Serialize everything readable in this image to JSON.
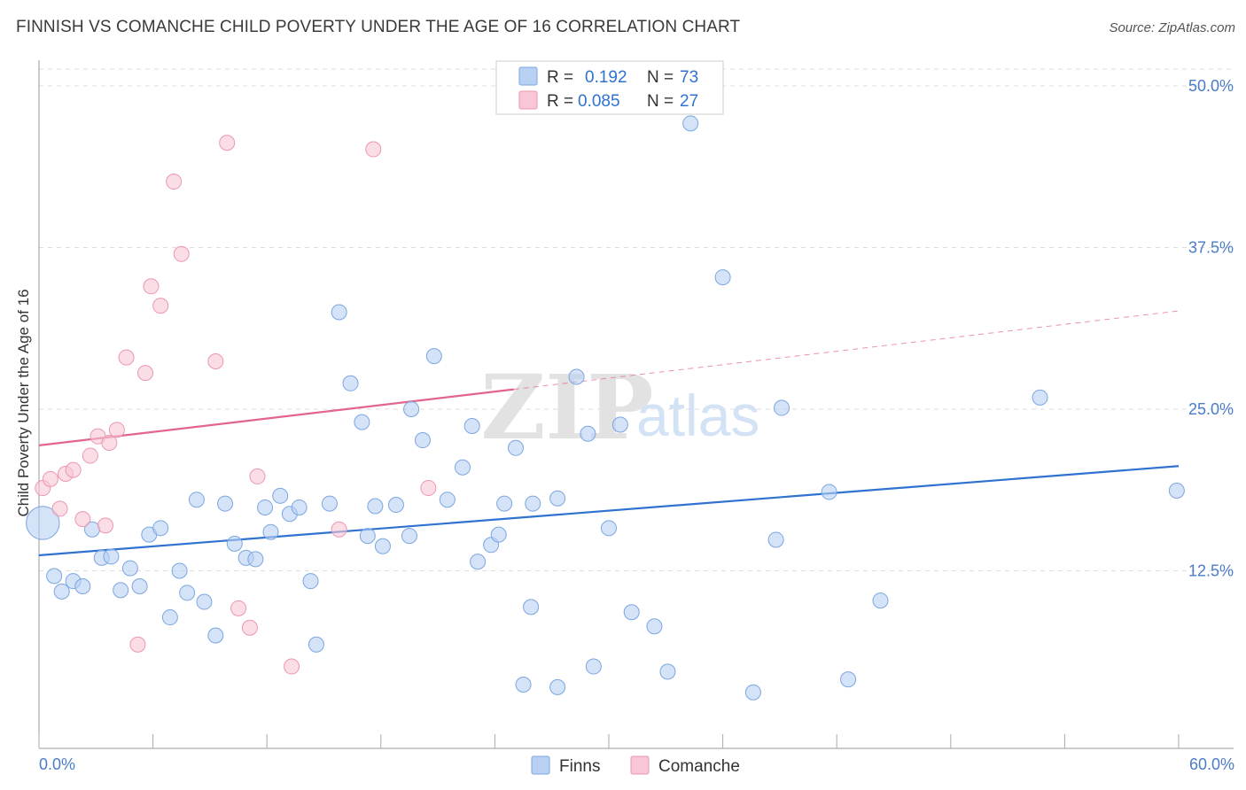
{
  "title": "FINNISH VS COMANCHE CHILD POVERTY UNDER THE AGE OF 16 CORRELATION CHART",
  "source": "Source: ZipAtlas.com",
  "watermark": {
    "zip": "ZIP",
    "atlas": "atlas"
  },
  "colors": {
    "finns_fill": "#b8d1f3",
    "finns_stroke": "#7ba6e0",
    "finns_line": "#2f72d0",
    "comanche_fill": "#f8c6d6",
    "comanche_stroke": "#ec97b1",
    "comanche_line": "#e2648f",
    "tick_text": "#4a7cc8",
    "grid": "#dddddd"
  },
  "legend": {
    "rows": [
      {
        "r_label": "R =",
        "r_value": "0.192",
        "n_label": "N =",
        "n_value": "73"
      },
      {
        "r_label": "R =",
        "r_value": "0.085",
        "n_label": "N =",
        "n_value": "27"
      }
    ]
  },
  "bottom_legend": {
    "finns": "Finns",
    "comanche": "Comanche"
  },
  "chart_data": {
    "type": "scatter",
    "title": "FINNISH VS COMANCHE CHILD POVERTY UNDER THE AGE OF 16 CORRELATION CHART",
    "xlabel": "",
    "ylabel": "Child Poverty Under the Age of 16",
    "xlim": [
      0,
      60
    ],
    "ylim": [
      0,
      52
    ],
    "x_tick_labels": [
      "0.0%",
      "60.0%"
    ],
    "y_ticks": [
      12.5,
      25.0,
      37.5,
      50.0
    ],
    "y_tick_labels": [
      "12.5%",
      "25.0%",
      "37.5%",
      "50.0%"
    ],
    "grid": true,
    "legend_position": "top-center",
    "series": [
      {
        "name": "Finns",
        "r": 0.192,
        "n": 73,
        "trend": {
          "x": [
            0,
            60
          ],
          "y": [
            13.7,
            20.6
          ],
          "dashed_from": null
        },
        "points": [
          [
            0.2,
            16.2,
            2.2
          ],
          [
            0.8,
            12.1,
            1
          ],
          [
            1.2,
            10.9,
            1
          ],
          [
            1.8,
            11.7,
            1
          ],
          [
            2.3,
            11.3,
            1
          ],
          [
            2.8,
            15.7,
            1
          ],
          [
            3.3,
            13.5,
            1
          ],
          [
            3.8,
            13.6,
            1
          ],
          [
            4.3,
            11.0,
            1
          ],
          [
            4.8,
            12.7,
            1
          ],
          [
            5.3,
            11.3,
            1
          ],
          [
            5.8,
            15.3,
            1
          ],
          [
            6.4,
            15.8,
            1
          ],
          [
            6.9,
            8.9,
            1
          ],
          [
            7.4,
            12.5,
            1
          ],
          [
            7.8,
            10.8,
            1
          ],
          [
            8.3,
            18.0,
            1
          ],
          [
            8.7,
            10.1,
            1
          ],
          [
            9.3,
            7.5,
            1
          ],
          [
            9.8,
            17.7,
            1
          ],
          [
            10.3,
            14.6,
            1
          ],
          [
            10.9,
            13.5,
            1
          ],
          [
            11.4,
            13.4,
            1
          ],
          [
            11.9,
            17.4,
            1
          ],
          [
            12.2,
            15.5,
            1
          ],
          [
            12.7,
            18.3,
            1
          ],
          [
            13.2,
            16.9,
            1
          ],
          [
            13.7,
            17.4,
            1
          ],
          [
            14.3,
            11.7,
            1
          ],
          [
            14.6,
            6.8,
            1
          ],
          [
            15.3,
            17.7,
            1
          ],
          [
            15.8,
            32.5,
            1
          ],
          [
            16.4,
            27.0,
            1
          ],
          [
            17.0,
            24.0,
            1
          ],
          [
            17.3,
            15.2,
            1
          ],
          [
            17.7,
            17.5,
            1
          ],
          [
            18.1,
            14.4,
            1
          ],
          [
            18.8,
            17.6,
            1
          ],
          [
            19.5,
            15.2,
            1
          ],
          [
            19.6,
            25.0,
            1
          ],
          [
            20.2,
            22.6,
            1
          ],
          [
            20.8,
            29.1,
            1
          ],
          [
            21.5,
            18.0,
            1
          ],
          [
            22.3,
            20.5,
            1
          ],
          [
            22.8,
            23.7,
            1
          ],
          [
            23.1,
            13.2,
            1
          ],
          [
            23.8,
            14.5,
            1
          ],
          [
            24.2,
            15.3,
            1
          ],
          [
            24.5,
            17.7,
            1
          ],
          [
            25.1,
            22.0,
            1
          ],
          [
            25.5,
            3.7,
            1
          ],
          [
            25.9,
            9.7,
            1
          ],
          [
            26.0,
            17.7,
            1
          ],
          [
            27.3,
            3.5,
            1
          ],
          [
            27.3,
            18.1,
            1
          ],
          [
            28.3,
            27.5,
            1
          ],
          [
            28.9,
            23.1,
            1
          ],
          [
            29.2,
            5.1,
            1
          ],
          [
            30.0,
            15.8,
            1
          ],
          [
            30.6,
            23.8,
            1
          ],
          [
            31.2,
            9.3,
            1
          ],
          [
            32.4,
            8.2,
            1
          ],
          [
            33.1,
            4.7,
            1
          ],
          [
            34.3,
            47.1,
            1
          ],
          [
            36.0,
            35.2,
            1
          ],
          [
            37.6,
            3.1,
            1
          ],
          [
            38.8,
            14.9,
            1
          ],
          [
            39.1,
            25.1,
            1
          ],
          [
            41.6,
            18.6,
            1
          ],
          [
            42.6,
            4.1,
            1
          ],
          [
            44.3,
            10.2,
            1
          ],
          [
            52.7,
            25.9,
            1
          ],
          [
            59.9,
            18.7,
            1
          ]
        ]
      },
      {
        "name": "Comanche",
        "r": 0.085,
        "n": 27,
        "trend": {
          "x": [
            0,
            60
          ],
          "y": [
            22.2,
            32.6
          ],
          "dashed_from": 25.0
        },
        "points": [
          [
            0.2,
            18.9,
            1
          ],
          [
            0.6,
            19.6,
            1
          ],
          [
            1.1,
            17.3,
            1
          ],
          [
            1.4,
            20.0,
            1
          ],
          [
            1.8,
            20.3,
            1
          ],
          [
            2.3,
            16.5,
            1
          ],
          [
            2.7,
            21.4,
            1
          ],
          [
            3.1,
            22.9,
            1
          ],
          [
            3.5,
            16.0,
            1
          ],
          [
            3.7,
            22.4,
            1
          ],
          [
            4.1,
            23.4,
            1
          ],
          [
            4.6,
            29.0,
            1
          ],
          [
            5.2,
            6.8,
            1
          ],
          [
            5.6,
            27.8,
            1
          ],
          [
            5.9,
            34.5,
            1
          ],
          [
            6.4,
            33.0,
            1
          ],
          [
            7.1,
            42.6,
            1
          ],
          [
            7.5,
            37.0,
            1
          ],
          [
            9.3,
            28.7,
            1
          ],
          [
            9.9,
            45.6,
            1
          ],
          [
            10.5,
            9.6,
            1
          ],
          [
            11.1,
            8.1,
            1
          ],
          [
            11.5,
            19.8,
            1
          ],
          [
            13.3,
            5.1,
            1
          ],
          [
            15.8,
            15.7,
            1
          ],
          [
            17.6,
            45.1,
            1
          ],
          [
            20.5,
            18.9,
            1
          ]
        ]
      }
    ]
  }
}
